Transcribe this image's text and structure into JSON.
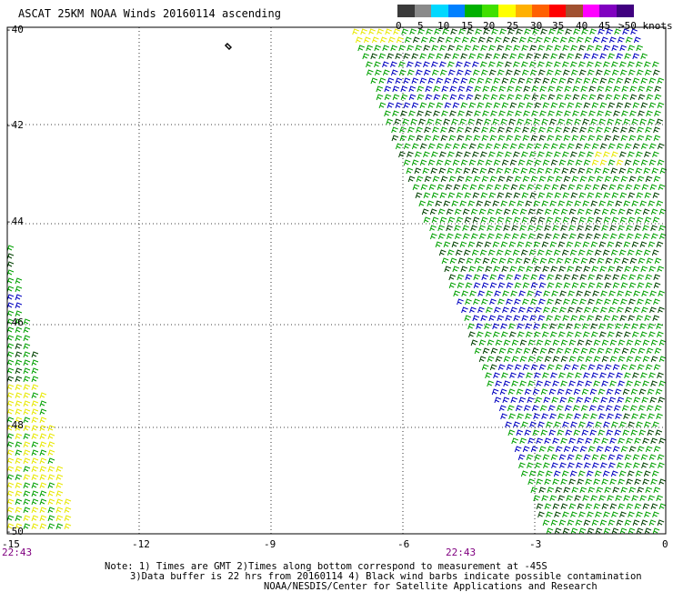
{
  "title": "ASCAT 25KM NOAA Winds 20160114 ascending",
  "legend": {
    "labels": [
      "0",
      "5",
      "10",
      "15",
      "20",
      "25",
      "30",
      "35",
      "40",
      "45",
      ">50 knots"
    ],
    "colors": [
      "#3a3a3a",
      "#8a8a8a",
      "#00d8ff",
      "#0080ff",
      "#00b000",
      "#40e000",
      "#ffff00",
      "#ffb000",
      "#ff6000",
      "#ff0000",
      "#a05030",
      "#ff00ff",
      "#8000c0",
      "#400080"
    ]
  },
  "map": {
    "lat_ticks": [
      "-40",
      "-42",
      "-44",
      "-46",
      "-48",
      "-50"
    ],
    "lon_ticks": [
      "-15",
      "-12",
      "-9",
      "-6",
      "-3",
      "0"
    ],
    "swath_times": [
      "22:43",
      "22:43"
    ],
    "barb_colors": {
      "green": "#00a000",
      "blue": "#0000c0",
      "yellow": "#e8e800",
      "dark": "#004000"
    }
  },
  "notes": {
    "line1": "Note: 1) Times are GMT 2)Times along bottom correspond to measurement at -45S",
    "line2": "3)Data buffer is 22 hrs from 20160114 4) Black wind barbs indicate possible contamination",
    "line3": "NOAA/NESDIS/Center for Satellite Applications and Research"
  }
}
